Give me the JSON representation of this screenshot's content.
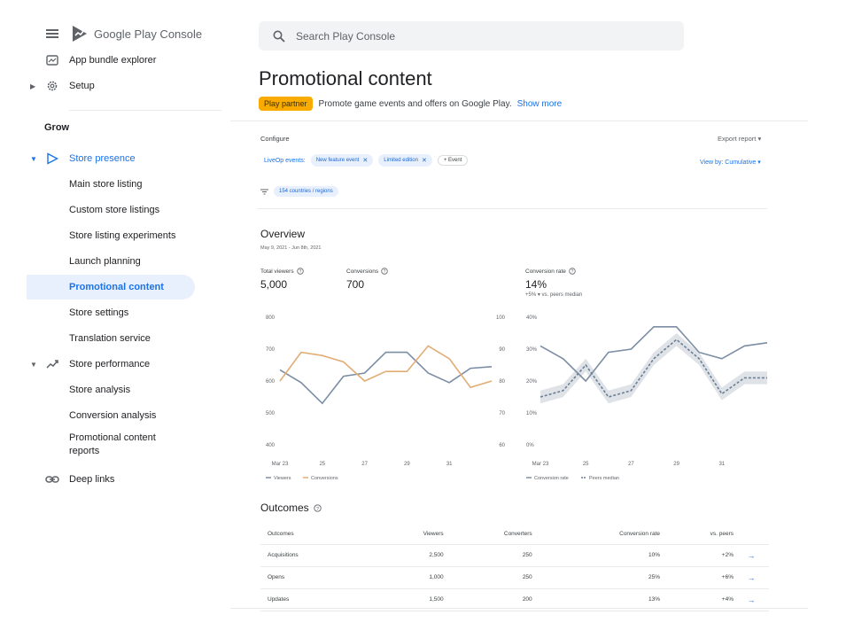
{
  "app": {
    "name": "Google Play Console"
  },
  "search": {
    "placeholder": "Search Play Console"
  },
  "sidebar": {
    "top_items": [
      "App bundle explorer",
      "Setup"
    ],
    "section": "Grow",
    "store_presence": "Store presence",
    "store_presence_items": [
      "Main store listing",
      "Custom store listings",
      "Store listing experiments",
      "Launch planning",
      "Promotional content",
      "Store settings",
      "Translation service"
    ],
    "store_performance": "Store performance",
    "store_performance_items": [
      "Store analysis",
      "Conversion analysis",
      "Promotional content",
      "reports"
    ],
    "deep_links": "Deep links"
  },
  "page": {
    "title": "Promotional content",
    "badge": "Play partner",
    "description": "Promote game events and offers on Google Play.",
    "show_more": "Show more"
  },
  "configure": {
    "label": "Configure",
    "export": "Export report",
    "liveop_label": "LiveOp events:",
    "chips": [
      "New feature event",
      "Limited edition"
    ],
    "add_event": "Event",
    "view_by": "View by: Cumulative",
    "filter": "154 countries / regions"
  },
  "overview": {
    "title": "Overview",
    "date_range": "May 9, 2021 - Jun 8th, 2021",
    "metrics": {
      "total_viewers": {
        "label": "Total viewers",
        "value": "5,000"
      },
      "conversions": {
        "label": "Conversions",
        "value": "700"
      },
      "conversion_rate": {
        "label": "Conversion rate",
        "value": "14%",
        "sub": "+5% ▾ vs. peers median"
      }
    }
  },
  "chart_data": [
    {
      "type": "line",
      "x": [
        "Mar 23",
        "24",
        "25",
        "26",
        "27",
        "28",
        "29",
        "30",
        "31",
        "Apr 1",
        "2"
      ],
      "x_ticks": [
        "Mar 23",
        "25",
        "27",
        "29",
        "31"
      ],
      "left_axis_ticks": [
        "800",
        "700",
        "600",
        "500",
        "400"
      ],
      "right_axis_ticks": [
        "100",
        "90",
        "80",
        "70",
        "60"
      ],
      "ylim_left": [
        400,
        800
      ],
      "ylim_right": [
        60,
        100
      ],
      "series": [
        {
          "name": "Viewers",
          "axis": "left",
          "color": "#7b8ea3",
          "values": [
            635,
            595,
            530,
            615,
            625,
            690,
            690,
            625,
            595,
            640,
            645
          ]
        },
        {
          "name": "Conversions",
          "axis": "right",
          "color": "#e2ad75",
          "values": [
            80,
            89,
            88,
            86,
            80,
            83,
            83,
            91,
            87,
            78,
            80
          ]
        }
      ],
      "grid": false,
      "legend": "bottom-left"
    },
    {
      "type": "line",
      "x": [
        "Mar 23",
        "24",
        "25",
        "26",
        "27",
        "28",
        "29",
        "30",
        "31",
        "Apr 1",
        "2"
      ],
      "x_ticks": [
        "Mar 23",
        "25",
        "27",
        "29",
        "31"
      ],
      "y_ticks": [
        "40%",
        "30%",
        "20%",
        "10%",
        "0%"
      ],
      "ylim": [
        0,
        40
      ],
      "series": [
        {
          "name": "Conversion rate",
          "color": "#7b8ea3",
          "values": [
            31,
            27,
            20,
            29,
            30,
            37,
            37,
            29,
            27,
            31,
            32
          ]
        },
        {
          "name": "Peers median",
          "color": "#6b7f95",
          "dashed": true,
          "band": 2,
          "values": [
            15,
            17,
            25,
            15,
            17,
            27,
            33,
            27,
            16,
            21,
            21
          ]
        }
      ],
      "grid": false,
      "legend": "bottom-left"
    }
  ],
  "outcomes": {
    "title": "Outcomes",
    "headers": [
      "Outcomes",
      "Viewers",
      "Converters",
      "Conversion rate",
      "vs. peers"
    ],
    "rows": [
      [
        "Acquisitions",
        "2,500",
        "250",
        "10%",
        "+2%"
      ],
      [
        "Opens",
        "1,000",
        "250",
        "25%",
        "+6%"
      ],
      [
        "Updates",
        "1,500",
        "200",
        "13%",
        "+4%"
      ]
    ]
  },
  "colors": {
    "accent": "#1a73e8",
    "badge": "#f9ab00",
    "active_bg": "#e8f0fe"
  }
}
